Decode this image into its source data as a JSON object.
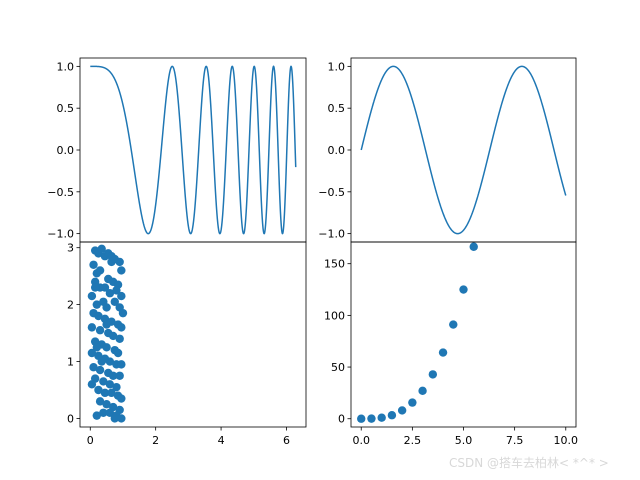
{
  "watermark": "CSDN @搭车去柏林< *^* >",
  "colors": {
    "series": "#1f77b4",
    "axes": "#000000"
  },
  "chart_data": [
    {
      "type": "line",
      "name": "top-left",
      "function": "cos(x^2)",
      "x_range": [
        0,
        6.283
      ],
      "xlim": [
        -0.314,
        6.597
      ],
      "ylim": [
        -1.1,
        1.1
      ],
      "xticks": [],
      "yticks": [
        -1.0,
        -0.5,
        0.0,
        0.5,
        1.0
      ],
      "ytick_labels": [
        "−1.0",
        "−0.5",
        "0.0",
        "0.5",
        "1.0"
      ],
      "samples": [
        [
          0,
          1.0
        ],
        [
          0.5,
          0.969
        ],
        [
          1.0,
          0.54
        ],
        [
          1.25,
          0.007
        ],
        [
          1.5,
          -0.628
        ],
        [
          1.77,
          -1.0
        ],
        [
          2.0,
          -0.654
        ],
        [
          2.25,
          0.341
        ],
        [
          2.5,
          1.0
        ],
        [
          3.0,
          -0.911
        ],
        [
          3.5,
          0.96
        ],
        [
          4.0,
          -0.958
        ],
        [
          4.5,
          0.95
        ],
        [
          5.0,
          0.991
        ],
        [
          5.5,
          -0.958
        ],
        [
          6.0,
          -0.994
        ],
        [
          6.283,
          -0.206
        ]
      ],
      "title": "",
      "xlabel": "",
      "ylabel": "",
      "grid": false
    },
    {
      "type": "line",
      "name": "top-right",
      "function": "sin(x)",
      "x_range": [
        0,
        10
      ],
      "xlim": [
        -0.5,
        10.5
      ],
      "ylim": [
        -1.1,
        1.1
      ],
      "xticks": [],
      "yticks": [
        -1.0,
        -0.5,
        0.0,
        0.5,
        1.0
      ],
      "ytick_labels": [
        "−1.0",
        "−0.5",
        "0.0",
        "0.5",
        "1.0"
      ],
      "samples": [
        [
          0,
          0.0
        ],
        [
          1.571,
          1.0
        ],
        [
          3.142,
          0.0
        ],
        [
          4.712,
          -1.0
        ],
        [
          6.283,
          0.0
        ],
        [
          7.854,
          1.0
        ],
        [
          10,
          -0.544
        ]
      ],
      "title": "",
      "xlabel": "",
      "ylabel": "",
      "grid": false
    },
    {
      "type": "scatter",
      "name": "bottom-left",
      "xlim": [
        -0.314,
        6.597
      ],
      "ylim": [
        -0.15,
        3.1
      ],
      "xticks": [
        0,
        2,
        4,
        6
      ],
      "xtick_labels": [
        "0",
        "2",
        "4",
        "6"
      ],
      "yticks": [
        0,
        1,
        2,
        3
      ],
      "ytick_labels": [
        "0",
        "1",
        "2",
        "3"
      ],
      "points": [
        [
          0.15,
          2.95
        ],
        [
          0.25,
          2.9
        ],
        [
          0.35,
          2.98
        ],
        [
          0.45,
          2.85
        ],
        [
          0.55,
          2.9
        ],
        [
          0.65,
          2.75
        ],
        [
          0.75,
          2.8
        ],
        [
          0.9,
          2.75
        ],
        [
          0.95,
          2.6
        ],
        [
          0.1,
          2.7
        ],
        [
          0.2,
          2.55
        ],
        [
          0.3,
          2.6
        ],
        [
          0.55,
          2.45
        ],
        [
          0.7,
          2.4
        ],
        [
          0.85,
          2.35
        ],
        [
          0.15,
          2.4
        ],
        [
          0.3,
          2.3
        ],
        [
          0.45,
          2.3
        ],
        [
          0.6,
          2.2
        ],
        [
          0.8,
          2.25
        ],
        [
          0.95,
          2.15
        ],
        [
          0.05,
          2.15
        ],
        [
          0.2,
          2.0
        ],
        [
          0.4,
          2.05
        ],
        [
          0.5,
          1.95
        ],
        [
          0.75,
          2.05
        ],
        [
          0.9,
          1.95
        ],
        [
          1.0,
          1.85
        ],
        [
          0.1,
          1.85
        ],
        [
          0.25,
          1.8
        ],
        [
          0.45,
          1.75
        ],
        [
          0.65,
          1.7
        ],
        [
          0.85,
          1.65
        ],
        [
          0.95,
          1.6
        ],
        [
          0.05,
          1.6
        ],
        [
          0.3,
          1.55
        ],
        [
          0.55,
          1.5
        ],
        [
          0.7,
          1.45
        ],
        [
          0.9,
          1.4
        ],
        [
          0.15,
          1.35
        ],
        [
          0.35,
          1.3
        ],
        [
          0.5,
          1.25
        ],
        [
          0.75,
          1.2
        ],
        [
          0.85,
          1.15
        ],
        [
          0.05,
          1.15
        ],
        [
          0.25,
          1.1
        ],
        [
          0.45,
          1.05
        ],
        [
          0.6,
          1.0
        ],
        [
          0.8,
          0.95
        ],
        [
          0.95,
          0.95
        ],
        [
          0.1,
          0.9
        ],
        [
          0.3,
          0.85
        ],
        [
          0.55,
          0.8
        ],
        [
          0.7,
          0.75
        ],
        [
          0.9,
          0.75
        ],
        [
          0.15,
          0.7
        ],
        [
          0.4,
          0.65
        ],
        [
          0.6,
          0.6
        ],
        [
          0.8,
          0.55
        ],
        [
          0.05,
          0.6
        ],
        [
          0.25,
          0.5
        ],
        [
          0.45,
          0.45
        ],
        [
          0.65,
          0.45
        ],
        [
          0.85,
          0.4
        ],
        [
          0.95,
          0.35
        ],
        [
          0.3,
          0.3
        ],
        [
          0.5,
          0.25
        ],
        [
          0.7,
          0.2
        ],
        [
          0.9,
          0.15
        ],
        [
          0.4,
          0.1
        ],
        [
          0.6,
          0.1
        ],
        [
          0.8,
          0.05
        ],
        [
          0.2,
          0.05
        ],
        [
          0.75,
          0.0
        ],
        [
          0.95,
          0.0
        ],
        [
          0.15,
          2.3
        ],
        [
          0.65,
          2.85
        ],
        [
          0.35,
          1.0
        ],
        [
          0.5,
          1.65
        ],
        [
          0.2,
          1.25
        ]
      ],
      "title": "",
      "xlabel": "",
      "ylabel": "",
      "grid": false
    },
    {
      "type": "scatter",
      "name": "bottom-right",
      "xlim": [
        -0.5,
        10.5
      ],
      "ylim": [
        -8,
        171
      ],
      "xticks": [
        0,
        2.5,
        5,
        7.5,
        10
      ],
      "xtick_labels": [
        "0.0",
        "2.5",
        "5.0",
        "7.5",
        "10.0"
      ],
      "yticks": [
        0,
        50,
        100,
        150
      ],
      "ytick_labels": [
        "0",
        "50",
        "100",
        "150"
      ],
      "points": [
        [
          0,
          0
        ],
        [
          0.5,
          0.1
        ],
        [
          1.0,
          1.0
        ],
        [
          1.5,
          3.4
        ],
        [
          2.0,
          8.0
        ],
        [
          2.5,
          15.6
        ],
        [
          3.0,
          27.0
        ],
        [
          3.5,
          42.9
        ],
        [
          4.0,
          64.0
        ],
        [
          4.5,
          91.1
        ],
        [
          5.0,
          125.0
        ],
        [
          5.5,
          166.4
        ]
      ],
      "title": "",
      "xlabel": "",
      "ylabel": "",
      "grid": false
    }
  ]
}
